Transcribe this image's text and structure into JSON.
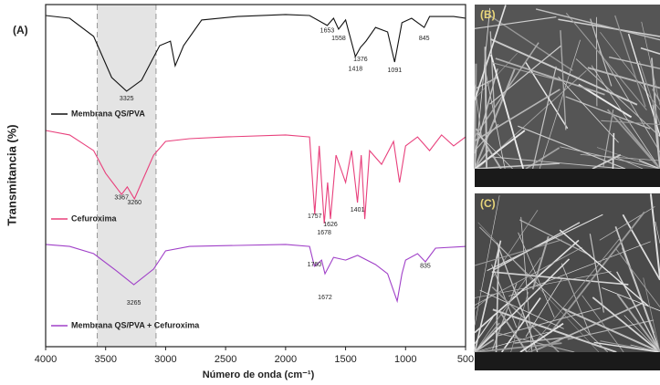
{
  "chart_data": {
    "type": "line",
    "panel_label": "(A)",
    "xlabel": "Número de onda (cm⁻¹)",
    "ylabel": "Transmitancia (%)",
    "xlim": [
      4000,
      500
    ],
    "ylim": [
      0,
      100
    ],
    "xticks": [
      4000,
      3500,
      3000,
      2500,
      2000,
      1500,
      1000,
      500
    ],
    "span": [
      3570,
      3080
    ],
    "series": [
      {
        "name": "Membrana QS/PVA",
        "color": "#111111",
        "x": [
          4000,
          3800,
          3600,
          3450,
          3325,
          3200,
          3050,
          2960,
          2920,
          2850,
          2700,
          2400,
          2000,
          1800,
          1653,
          1600,
          1558,
          1500,
          1418,
          1376,
          1330,
          1250,
          1150,
          1091,
          1030,
          950,
          845,
          800,
          600,
          500
        ],
        "values": [
          96.8,
          96,
          90.7,
          78.7,
          74.7,
          77.9,
          88,
          89.3,
          82.1,
          88,
          95.5,
          96.5,
          97.1,
          96.8,
          93.9,
          96,
          92.8,
          95.5,
          84.8,
          87.5,
          89.3,
          93.3,
          92,
          83.2,
          94.7,
          96,
          93.3,
          96.5,
          96.5,
          96
        ]
      },
      {
        "name": "Cefuroxima",
        "color": "#e8407c",
        "x": [
          4000,
          3800,
          3600,
          3500,
          3367,
          3320,
          3260,
          3200,
          3100,
          3000,
          2800,
          2500,
          2000,
          1800,
          1757,
          1720,
          1678,
          1650,
          1626,
          1580,
          1500,
          1450,
          1401,
          1370,
          1340,
          1300,
          1200,
          1100,
          1050,
          1000,
          900,
          800,
          700,
          600,
          500
        ],
        "values": [
          63.2,
          61.9,
          57.3,
          50.7,
          44.5,
          46.7,
          43.2,
          48,
          56,
          60,
          60.8,
          61.3,
          61.9,
          61.3,
          38.7,
          58.7,
          36,
          48,
          37.3,
          56,
          48,
          57.3,
          42.1,
          56,
          37.3,
          57.3,
          53.3,
          60,
          48,
          58.7,
          61.3,
          57.3,
          61.9,
          58.7,
          61.3
        ]
      },
      {
        "name": "Membrana QS/PVA + Cefuroxima",
        "color": "#a040c8",
        "x": [
          4000,
          3800,
          3600,
          3400,
          3265,
          3100,
          3000,
          2800,
          2000,
          1800,
          1760,
          1700,
          1672,
          1600,
          1500,
          1400,
          1250,
          1150,
          1070,
          1030,
          1000,
          900,
          835,
          750,
          500
        ],
        "values": [
          29.9,
          29.3,
          27.2,
          21.9,
          18.1,
          22.7,
          28,
          29.3,
          29.9,
          29.3,
          23.5,
          25.3,
          21.3,
          26.1,
          25.3,
          26.7,
          24,
          21.3,
          13.3,
          21.3,
          25.3,
          27.2,
          24.8,
          28.8,
          29.3
        ]
      }
    ],
    "annotations": [
      {
        "x": 3325,
        "y": 72.5
      },
      {
        "x": 1653,
        "y": 92.3
      },
      {
        "x": 1558,
        "y": 90.1
      },
      {
        "x": 1418,
        "y": 81.1
      },
      {
        "x": 1376,
        "y": 84
      },
      {
        "x": 1091,
        "y": 80.8
      },
      {
        "x": 845,
        "y": 90.1
      },
      {
        "x": 3367,
        "y": 43.5
      },
      {
        "x": 3260,
        "y": 42.1
      },
      {
        "x": 1757,
        "y": 38.1
      },
      {
        "x": 1678,
        "y": 33.3
      },
      {
        "x": 1626,
        "y": 35.7
      },
      {
        "x": 1401,
        "y": 40
      },
      {
        "x": 1760,
        "y": 24
      },
      {
        "x": 1672,
        "y": 14.4
      },
      {
        "x": 3265,
        "y": 12.8
      },
      {
        "x": 835,
        "y": 23.5
      }
    ]
  },
  "images": [
    {
      "label": "(B)"
    },
    {
      "label": "(C)"
    }
  ]
}
